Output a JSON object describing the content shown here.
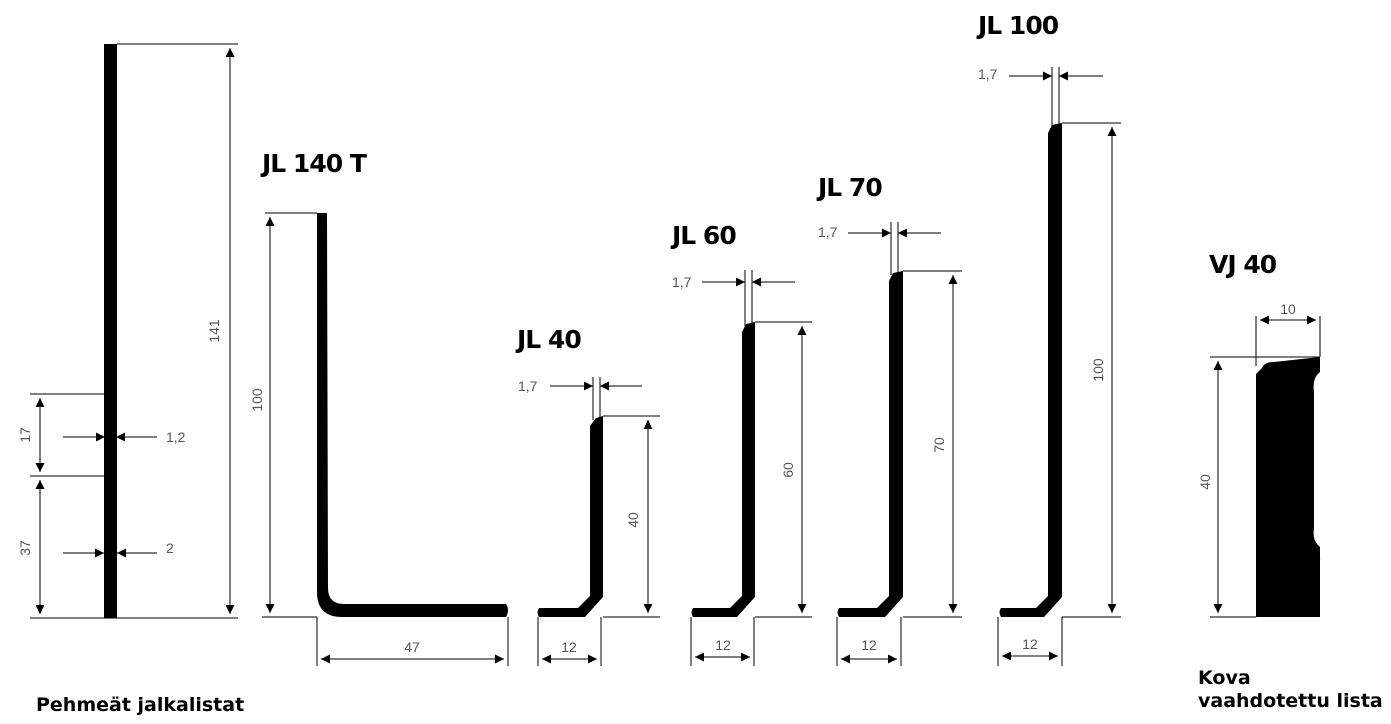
{
  "profiles": {
    "p0": {
      "d_height": "141",
      "d_17": "17",
      "d_37": "37",
      "d_12": "1,2",
      "d_2": "2"
    },
    "p1": {
      "title": "JL 140 T",
      "d_height": "100",
      "d_width": "47"
    },
    "p2": {
      "title": "JL 40",
      "d_height": "40",
      "d_thk": "1,7",
      "d_width": "12"
    },
    "p3": {
      "title": "JL 60",
      "d_height": "60",
      "d_thk": "1,7",
      "d_width": "12"
    },
    "p4": {
      "title": "JL 70",
      "d_height": "70",
      "d_thk": "1,7",
      "d_width": "12"
    },
    "p5": {
      "title": "JL 100",
      "d_height": "100",
      "d_thk": "1,7",
      "d_width": "12"
    },
    "p6": {
      "title": "VJ 40",
      "d_height": "40",
      "d_width": "10"
    }
  },
  "captions": {
    "soft": "Pehmeät jalkalistat",
    "hard_line1": "Kova",
    "hard_line2": "vaahdotettu lista"
  }
}
